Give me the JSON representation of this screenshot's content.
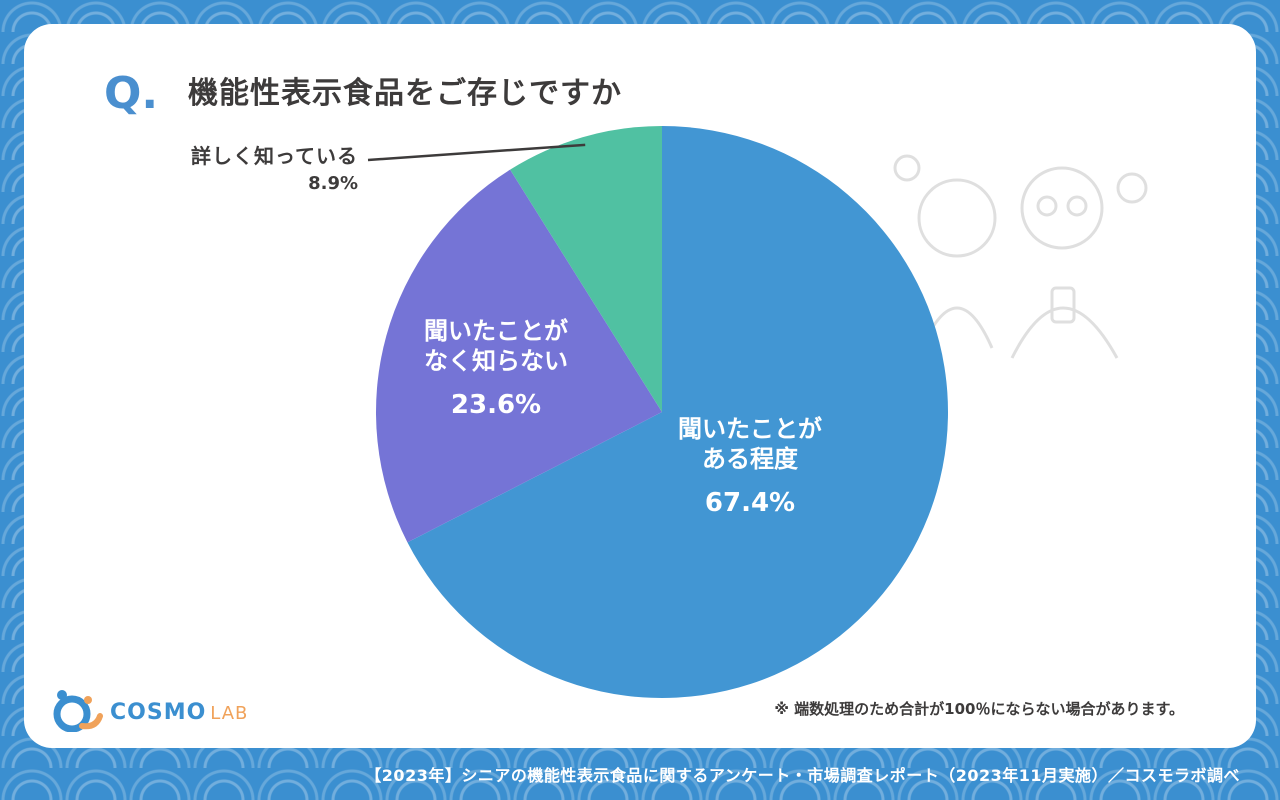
{
  "title": {
    "q_mark": "Q.",
    "text": "機能性表示食品をご存じですか"
  },
  "chart_data": {
    "type": "pie",
    "title": "機能性表示食品をご存じですか",
    "slices": [
      {
        "label": "聞いたことが\nある程度",
        "value": 67.4,
        "display": "67.4%",
        "color": "#4296d3"
      },
      {
        "label": "聞いたことが\nなく知らない",
        "value": 23.6,
        "display": "23.6%",
        "color": "#7574d6"
      },
      {
        "label": "詳しく知っている",
        "value": 8.9,
        "display": "8.9%",
        "color": "#50c1a2"
      }
    ],
    "start": "12 o'clock",
    "direction": "clockwise"
  },
  "note": "※ 端数処理のため合計が100％にならない場合があります。",
  "logo": {
    "main": "COSMO",
    "sub": "LAB",
    "brand_color": "#3b8fd0",
    "accent_color": "#f0a25a"
  },
  "footer": "【2023年】シニアの機能性表示食品に関するアンケート・市場調査レポート（2023年11月実施）／コスモラボ調べ"
}
